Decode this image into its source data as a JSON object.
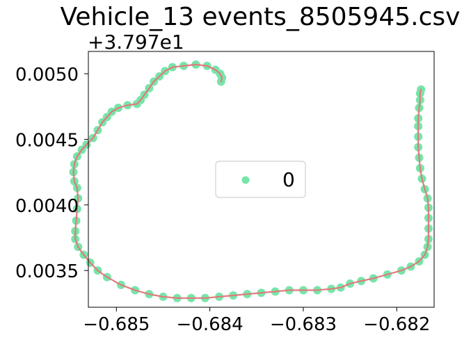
{
  "chart_data": {
    "type": "scatter",
    "title": "Vehicle_13 events_8505945.csv",
    "xlabel": "",
    "ylabel": "",
    "y_offset_label": "+3.797e1",
    "xlim": [
      -0.6853,
      -0.6816
    ],
    "ylim": [
      0.00322,
      0.00517
    ],
    "x_ticks": [
      -0.685,
      -0.684,
      -0.683,
      -0.682
    ],
    "x_tick_labels": [
      "−0.685",
      "−0.684",
      "−0.683",
      "−0.682"
    ],
    "y_ticks": [
      0.0035,
      0.004,
      0.0045,
      0.005
    ],
    "y_tick_labels": [
      "0.0035",
      "0.0040",
      "0.0045",
      "0.0050"
    ],
    "grid": false,
    "legend_position": "center",
    "series": [
      {
        "name": "0",
        "marker_color": "#77e5aa",
        "line_color": "#e07b7b",
        "points": [
          [
            -0.68388,
            0.00494
          ],
          [
            -0.68387,
            0.00497
          ],
          [
            -0.68389,
            0.005
          ],
          [
            -0.68394,
            0.00503
          ],
          [
            -0.68403,
            0.00506
          ],
          [
            -0.68415,
            0.00507
          ],
          [
            -0.68428,
            0.00506
          ],
          [
            -0.6844,
            0.00505
          ],
          [
            -0.68448,
            0.00502
          ],
          [
            -0.68454,
            0.00498
          ],
          [
            -0.6846,
            0.00494
          ],
          [
            -0.68465,
            0.00489
          ],
          [
            -0.6847,
            0.00484
          ],
          [
            -0.68474,
            0.0048
          ],
          [
            -0.68478,
            0.00477
          ],
          [
            -0.68488,
            0.00476
          ],
          [
            -0.68498,
            0.00474
          ],
          [
            -0.68505,
            0.00471
          ],
          [
            -0.6851,
            0.00467
          ],
          [
            -0.68515,
            0.00463
          ],
          [
            -0.6852,
            0.00457
          ],
          [
            -0.68525,
            0.00451
          ],
          [
            -0.68532,
            0.00446
          ],
          [
            -0.68537,
            0.00442
          ],
          [
            -0.68542,
            0.00437
          ],
          [
            -0.68545,
            0.00431
          ],
          [
            -0.68546,
            0.00425
          ],
          [
            -0.68545,
            0.00418
          ],
          [
            -0.68542,
            0.00413
          ],
          [
            -0.68541,
            0.00405
          ],
          [
            -0.68542,
            0.00397
          ],
          [
            -0.68543,
            0.00388
          ],
          [
            -0.68544,
            0.0038
          ],
          [
            -0.68544,
            0.00374
          ],
          [
            -0.68541,
            0.00368
          ],
          [
            -0.68535,
            0.00362
          ],
          [
            -0.68528,
            0.00356
          ],
          [
            -0.6852,
            0.0035
          ],
          [
            -0.6851,
            0.00345
          ],
          [
            -0.68495,
            0.00339
          ],
          [
            -0.6848,
            0.00335
          ],
          [
            -0.68465,
            0.00332
          ],
          [
            -0.6845,
            0.0033
          ],
          [
            -0.68435,
            0.00329
          ],
          [
            -0.6842,
            0.00329
          ],
          [
            -0.68405,
            0.00329
          ],
          [
            -0.6839,
            0.0033
          ],
          [
            -0.68375,
            0.00331
          ],
          [
            -0.6836,
            0.00332
          ],
          [
            -0.68345,
            0.00333
          ],
          [
            -0.6833,
            0.00334
          ],
          [
            -0.68315,
            0.00335
          ],
          [
            -0.683,
            0.00335
          ],
          [
            -0.68285,
            0.00335
          ],
          [
            -0.6827,
            0.00336
          ],
          [
            -0.6826,
            0.00337
          ],
          [
            -0.6825,
            0.0034
          ],
          [
            -0.68238,
            0.00342
          ],
          [
            -0.68225,
            0.00344
          ],
          [
            -0.6821,
            0.00347
          ],
          [
            -0.68195,
            0.0035
          ],
          [
            -0.68185,
            0.00353
          ],
          [
            -0.68176,
            0.00357
          ],
          [
            -0.6817,
            0.00362
          ],
          [
            -0.68167,
            0.00368
          ],
          [
            -0.68166,
            0.00374
          ],
          [
            -0.68166,
            0.00382
          ],
          [
            -0.68166,
            0.0039
          ],
          [
            -0.68166,
            0.00398
          ],
          [
            -0.68167,
            0.00405
          ],
          [
            -0.6817,
            0.00412
          ],
          [
            -0.68173,
            0.0042
          ],
          [
            -0.68175,
            0.00428
          ],
          [
            -0.68176,
            0.00436
          ],
          [
            -0.68177,
            0.00444
          ],
          [
            -0.68177,
            0.00452
          ],
          [
            -0.68177,
            0.0046
          ],
          [
            -0.68177,
            0.00466
          ],
          [
            -0.68176,
            0.00474
          ],
          [
            -0.68175,
            0.0048
          ],
          [
            -0.68175,
            0.00485
          ],
          [
            -0.68174,
            0.00488
          ]
        ]
      }
    ]
  }
}
